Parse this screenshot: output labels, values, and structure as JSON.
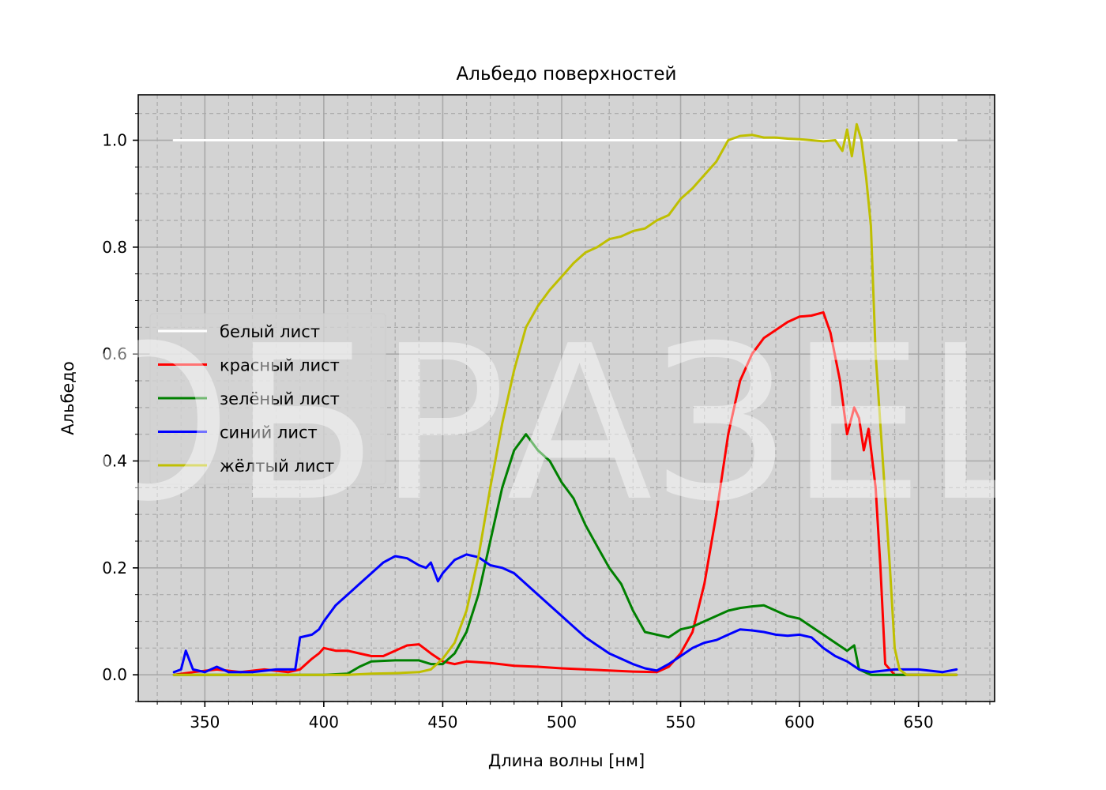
{
  "chart_data": {
    "type": "line",
    "title": "Альбедо поверхностей",
    "xlabel": "Длина волны [нм]",
    "ylabel": "Альбедо",
    "xlim": [
      322,
      682
    ],
    "ylim": [
      -0.05,
      1.085
    ],
    "x_ticks": [
      350,
      400,
      450,
      500,
      550,
      600,
      650
    ],
    "y_ticks": [
      0.0,
      0.2,
      0.4,
      0.6,
      0.8,
      1.0
    ],
    "x_tick_labels": [
      "350",
      "400",
      "450",
      "500",
      "550",
      "600",
      "650"
    ],
    "y_tick_labels": [
      "0.0",
      "0.2",
      "0.4",
      "0.6",
      "0.8",
      "1.0"
    ],
    "grid": true,
    "minor_grid": true,
    "legend_position": "center-left",
    "background": "#d3d3d3",
    "watermark": "ОБРАЗЕЦ",
    "series": [
      {
        "name": "белый лист",
        "color": "#ffffff",
        "points": [
          [
            337,
            1.0
          ],
          [
            666,
            1.0
          ]
        ]
      },
      {
        "name": "красный лист",
        "color": "#ff0000",
        "points": [
          [
            337,
            0.0
          ],
          [
            345,
            0.005
          ],
          [
            355,
            0.01
          ],
          [
            365,
            0.005
          ],
          [
            375,
            0.01
          ],
          [
            385,
            0.005
          ],
          [
            390,
            0.01
          ],
          [
            395,
            0.03
          ],
          [
            398,
            0.04
          ],
          [
            400,
            0.05
          ],
          [
            405,
            0.045
          ],
          [
            410,
            0.045
          ],
          [
            415,
            0.04
          ],
          [
            420,
            0.035
          ],
          [
            425,
            0.035
          ],
          [
            430,
            0.045
          ],
          [
            435,
            0.055
          ],
          [
            440,
            0.057
          ],
          [
            445,
            0.04
          ],
          [
            450,
            0.025
          ],
          [
            455,
            0.02
          ],
          [
            460,
            0.025
          ],
          [
            470,
            0.022
          ],
          [
            480,
            0.017
          ],
          [
            490,
            0.015
          ],
          [
            500,
            0.012
          ],
          [
            510,
            0.01
          ],
          [
            520,
            0.008
          ],
          [
            530,
            0.006
          ],
          [
            540,
            0.005
          ],
          [
            545,
            0.015
          ],
          [
            550,
            0.04
          ],
          [
            555,
            0.08
          ],
          [
            560,
            0.17
          ],
          [
            565,
            0.3
          ],
          [
            570,
            0.45
          ],
          [
            575,
            0.55
          ],
          [
            580,
            0.6
          ],
          [
            585,
            0.63
          ],
          [
            590,
            0.645
          ],
          [
            595,
            0.66
          ],
          [
            600,
            0.67
          ],
          [
            605,
            0.672
          ],
          [
            610,
            0.678
          ],
          [
            613,
            0.64
          ],
          [
            617,
            0.55
          ],
          [
            620,
            0.45
          ],
          [
            623,
            0.5
          ],
          [
            625,
            0.48
          ],
          [
            627,
            0.42
          ],
          [
            629,
            0.46
          ],
          [
            632,
            0.35
          ],
          [
            634,
            0.2
          ],
          [
            636,
            0.02
          ],
          [
            640,
            0.0
          ],
          [
            650,
            0.0
          ],
          [
            666,
            0.0
          ]
        ]
      },
      {
        "name": "зелёный лист",
        "color": "#008000",
        "points": [
          [
            337,
            0.0
          ],
          [
            350,
            0.0
          ],
          [
            360,
            0.0
          ],
          [
            370,
            0.0
          ],
          [
            380,
            0.0
          ],
          [
            390,
            0.0
          ],
          [
            400,
            0.0
          ],
          [
            410,
            0.002
          ],
          [
            415,
            0.015
          ],
          [
            420,
            0.025
          ],
          [
            430,
            0.027
          ],
          [
            440,
            0.027
          ],
          [
            445,
            0.02
          ],
          [
            450,
            0.02
          ],
          [
            455,
            0.04
          ],
          [
            460,
            0.08
          ],
          [
            465,
            0.15
          ],
          [
            470,
            0.25
          ],
          [
            475,
            0.35
          ],
          [
            480,
            0.42
          ],
          [
            485,
            0.45
          ],
          [
            490,
            0.42
          ],
          [
            495,
            0.4
          ],
          [
            500,
            0.36
          ],
          [
            505,
            0.33
          ],
          [
            510,
            0.28
          ],
          [
            515,
            0.24
          ],
          [
            520,
            0.2
          ],
          [
            525,
            0.17
          ],
          [
            530,
            0.12
          ],
          [
            535,
            0.08
          ],
          [
            540,
            0.075
          ],
          [
            545,
            0.07
          ],
          [
            550,
            0.085
          ],
          [
            555,
            0.09
          ],
          [
            560,
            0.1
          ],
          [
            565,
            0.11
          ],
          [
            570,
            0.12
          ],
          [
            575,
            0.125
          ],
          [
            580,
            0.128
          ],
          [
            585,
            0.13
          ],
          [
            590,
            0.12
          ],
          [
            595,
            0.11
          ],
          [
            600,
            0.105
          ],
          [
            605,
            0.09
          ],
          [
            610,
            0.075
          ],
          [
            615,
            0.06
          ],
          [
            620,
            0.045
          ],
          [
            623,
            0.055
          ],
          [
            625,
            0.01
          ],
          [
            630,
            0.0
          ],
          [
            640,
            0.0
          ],
          [
            650,
            0.0
          ],
          [
            666,
            0.0
          ]
        ]
      },
      {
        "name": "синий лист",
        "color": "#0000ff",
        "points": [
          [
            337,
            0.005
          ],
          [
            340,
            0.01
          ],
          [
            342,
            0.045
          ],
          [
            345,
            0.01
          ],
          [
            350,
            0.005
          ],
          [
            355,
            0.015
          ],
          [
            360,
            0.005
          ],
          [
            370,
            0.005
          ],
          [
            380,
            0.01
          ],
          [
            388,
            0.01
          ],
          [
            390,
            0.07
          ],
          [
            395,
            0.075
          ],
          [
            398,
            0.085
          ],
          [
            400,
            0.1
          ],
          [
            405,
            0.13
          ],
          [
            410,
            0.15
          ],
          [
            415,
            0.17
          ],
          [
            420,
            0.19
          ],
          [
            425,
            0.21
          ],
          [
            430,
            0.222
          ],
          [
            435,
            0.218
          ],
          [
            440,
            0.205
          ],
          [
            443,
            0.2
          ],
          [
            445,
            0.21
          ],
          [
            448,
            0.175
          ],
          [
            450,
            0.19
          ],
          [
            455,
            0.215
          ],
          [
            460,
            0.225
          ],
          [
            465,
            0.22
          ],
          [
            470,
            0.205
          ],
          [
            475,
            0.2
          ],
          [
            480,
            0.19
          ],
          [
            485,
            0.17
          ],
          [
            490,
            0.15
          ],
          [
            495,
            0.13
          ],
          [
            500,
            0.11
          ],
          [
            505,
            0.09
          ],
          [
            510,
            0.07
          ],
          [
            515,
            0.055
          ],
          [
            520,
            0.04
          ],
          [
            525,
            0.03
          ],
          [
            530,
            0.02
          ],
          [
            535,
            0.012
          ],
          [
            540,
            0.008
          ],
          [
            545,
            0.02
          ],
          [
            550,
            0.035
          ],
          [
            555,
            0.05
          ],
          [
            560,
            0.06
          ],
          [
            565,
            0.065
          ],
          [
            570,
            0.075
          ],
          [
            575,
            0.085
          ],
          [
            580,
            0.083
          ],
          [
            585,
            0.08
          ],
          [
            590,
            0.075
          ],
          [
            595,
            0.073
          ],
          [
            600,
            0.075
          ],
          [
            605,
            0.07
          ],
          [
            610,
            0.05
          ],
          [
            615,
            0.035
          ],
          [
            620,
            0.025
          ],
          [
            625,
            0.01
          ],
          [
            630,
            0.005
          ],
          [
            640,
            0.01
          ],
          [
            650,
            0.01
          ],
          [
            660,
            0.005
          ],
          [
            666,
            0.01
          ]
        ]
      },
      {
        "name": "жёлтый лист",
        "color": "#bfbf00",
        "points": [
          [
            337,
            0.0
          ],
          [
            350,
            0.0
          ],
          [
            360,
            0.0
          ],
          [
            370,
            0.0
          ],
          [
            380,
            0.0
          ],
          [
            390,
            0.0
          ],
          [
            400,
            0.0
          ],
          [
            410,
            0.0
          ],
          [
            420,
            0.002
          ],
          [
            430,
            0.003
          ],
          [
            440,
            0.005
          ],
          [
            445,
            0.01
          ],
          [
            450,
            0.03
          ],
          [
            455,
            0.06
          ],
          [
            460,
            0.12
          ],
          [
            465,
            0.22
          ],
          [
            470,
            0.35
          ],
          [
            475,
            0.47
          ],
          [
            480,
            0.57
          ],
          [
            485,
            0.65
          ],
          [
            490,
            0.69
          ],
          [
            495,
            0.72
          ],
          [
            500,
            0.745
          ],
          [
            505,
            0.77
          ],
          [
            510,
            0.79
          ],
          [
            515,
            0.8
          ],
          [
            520,
            0.815
          ],
          [
            525,
            0.82
          ],
          [
            530,
            0.83
          ],
          [
            535,
            0.835
          ],
          [
            540,
            0.85
          ],
          [
            545,
            0.86
          ],
          [
            550,
            0.89
          ],
          [
            555,
            0.91
          ],
          [
            560,
            0.935
          ],
          [
            565,
            0.96
          ],
          [
            570,
            1.0
          ],
          [
            575,
            1.008
          ],
          [
            580,
            1.01
          ],
          [
            585,
            1.005
          ],
          [
            590,
            1.005
          ],
          [
            595,
            1.003
          ],
          [
            600,
            1.002
          ],
          [
            605,
            1.0
          ],
          [
            610,
            0.998
          ],
          [
            615,
            1.0
          ],
          [
            618,
            0.98
          ],
          [
            620,
            1.02
          ],
          [
            622,
            0.97
          ],
          [
            624,
            1.03
          ],
          [
            626,
            1.0
          ],
          [
            628,
            0.93
          ],
          [
            630,
            0.84
          ],
          [
            632,
            0.6
          ],
          [
            635,
            0.4
          ],
          [
            638,
            0.2
          ],
          [
            640,
            0.05
          ],
          [
            642,
            0.01
          ],
          [
            645,
            0.0
          ],
          [
            650,
            0.0
          ],
          [
            666,
            0.0
          ]
        ]
      }
    ]
  }
}
